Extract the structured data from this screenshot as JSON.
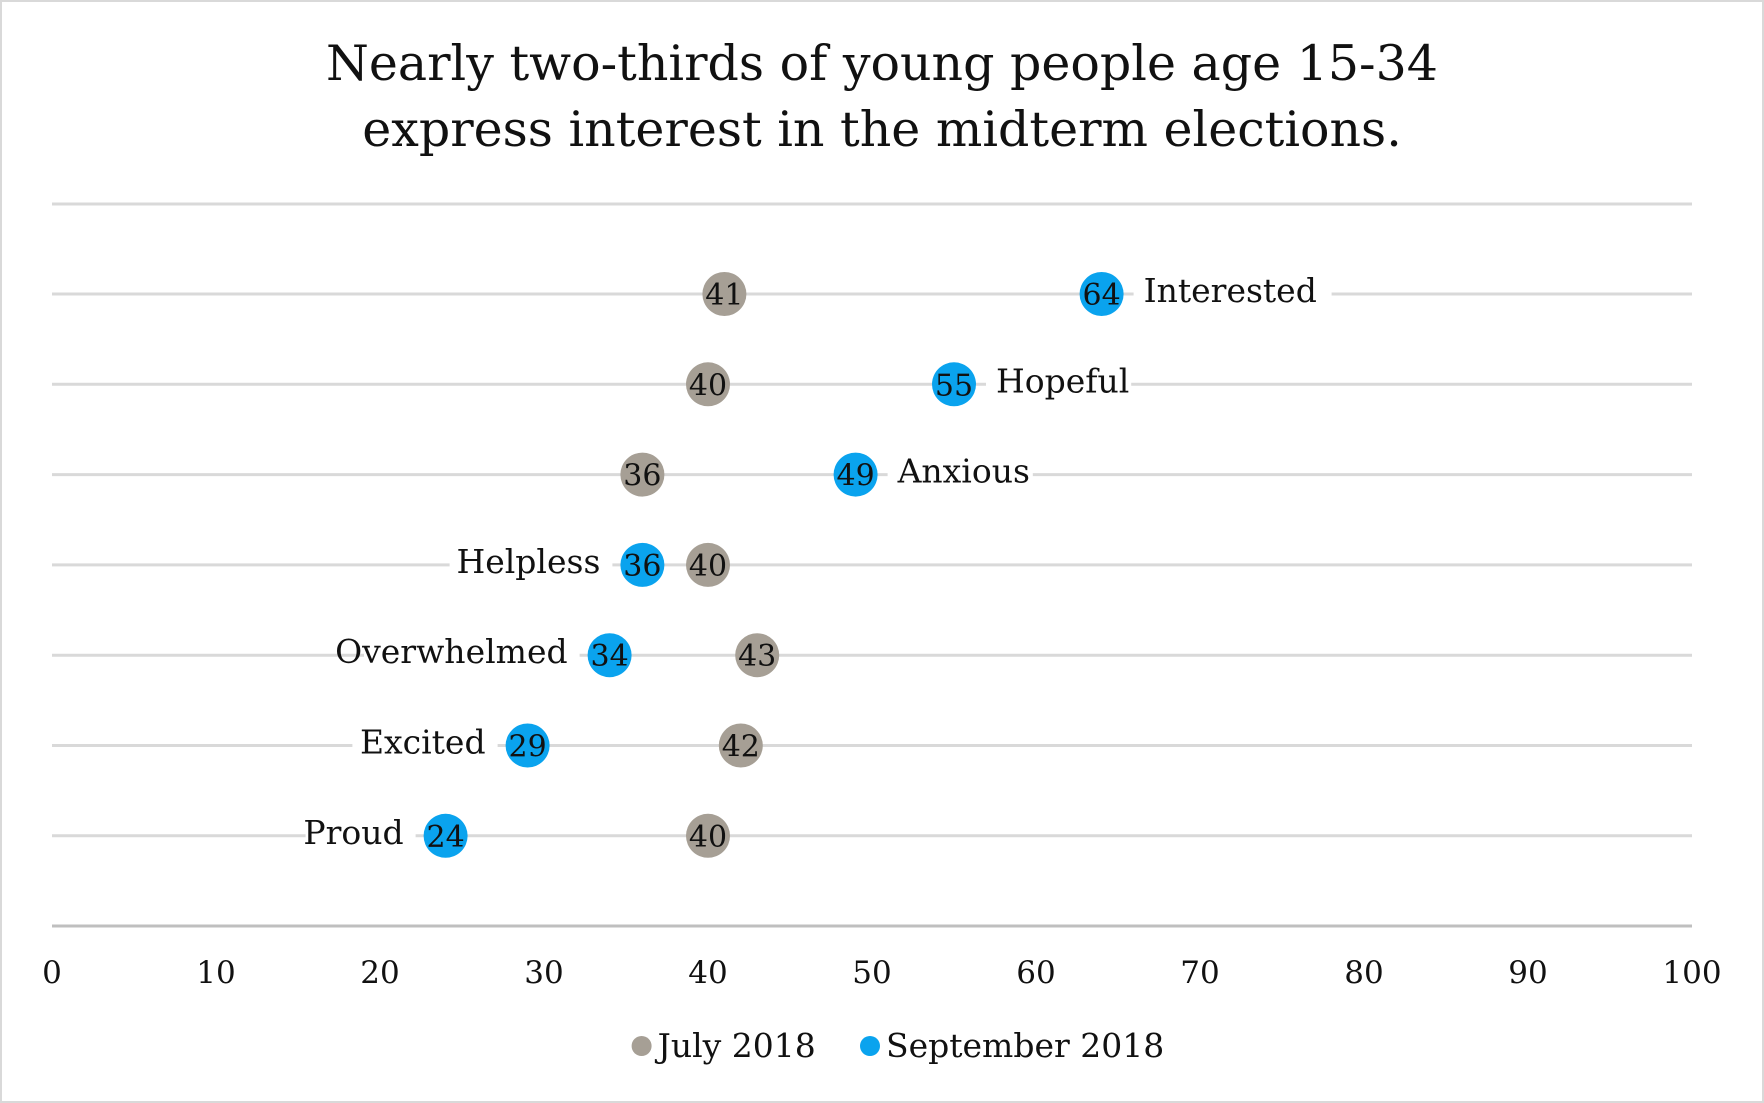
{
  "chart_data": {
    "type": "scatter",
    "title": "Nearly two-thirds of young people age 15-34 express interest in the midterm elections.",
    "title_lines": [
      "Nearly two-thirds of young people age 15-34",
      "express interest in the midterm elections."
    ],
    "xlim": [
      0,
      100
    ],
    "xticks": [
      "0",
      "10",
      "20",
      "30",
      "40",
      "50",
      "60",
      "70",
      "80",
      "90",
      "100"
    ],
    "grid": true,
    "legend_position": "bottom",
    "categories": [
      "Interested",
      "Hopeful",
      "Anxious",
      "Helpless",
      "Overwhelmed",
      "Excited",
      "Proud"
    ],
    "series": [
      {
        "name": "July 2018",
        "color": "#a69f95",
        "values": [
          41,
          40,
          36,
          40,
          43,
          42,
          40
        ]
      },
      {
        "name": "September 2018",
        "color": "#0aa3ee",
        "values": [
          64,
          55,
          49,
          36,
          34,
          29,
          24
        ]
      }
    ]
  }
}
